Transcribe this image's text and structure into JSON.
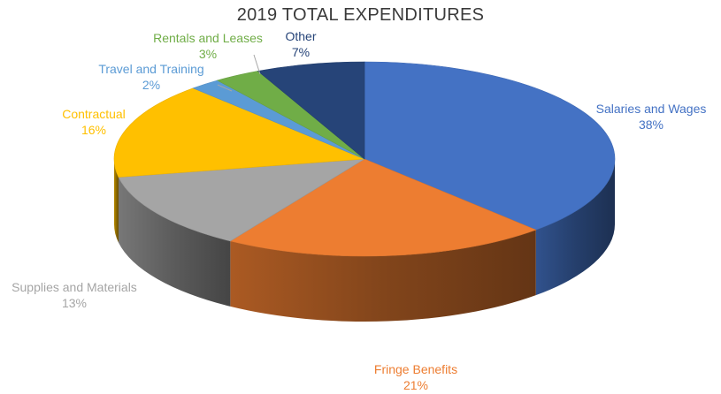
{
  "chart_data": {
    "type": "pie",
    "title": "2019 TOTAL EXPENDITURES",
    "style": "3d",
    "slices": [
      {
        "name": "Salaries and Wages",
        "value": 38,
        "label": "38%",
        "color": "#4472C4"
      },
      {
        "name": "Fringe Benefits",
        "value": 21,
        "label": "21%",
        "color": "#ED7D31"
      },
      {
        "name": "Supplies and Materials",
        "value": 13,
        "label": "13%",
        "color": "#A5A5A5"
      },
      {
        "name": "Contractual",
        "value": 16,
        "label": "16%",
        "color": "#FFC000"
      },
      {
        "name": "Travel and Training",
        "value": 2,
        "label": "2%",
        "color": "#5B9BD5"
      },
      {
        "name": "Rentals and Leases",
        "value": 3,
        "label": "3%",
        "color": "#70AD47"
      },
      {
        "name": "Other",
        "value": 7,
        "label": "7%",
        "color": "#264478"
      }
    ]
  }
}
